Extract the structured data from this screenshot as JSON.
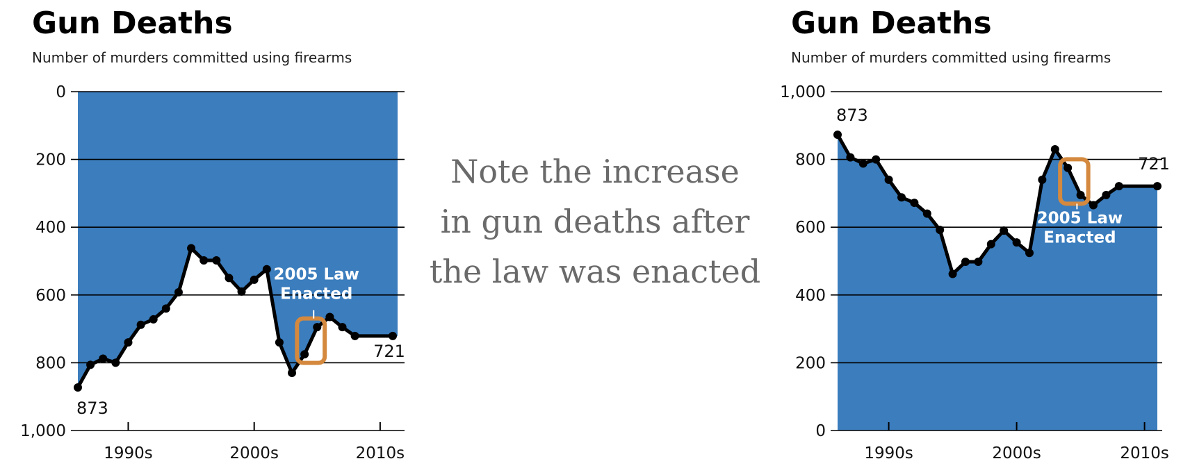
{
  "note": {
    "lines": [
      "Note the increase",
      "in gun deaths after",
      "the law was enacted"
    ]
  },
  "colors": {
    "area": "#3b7dbd",
    "line": "#000000",
    "highlight": "#d4893e",
    "annotation_text": "#ffffff"
  },
  "chart_data": [
    {
      "type": "area",
      "title": "Gun Deaths",
      "subtitle": "Number of murders committed using firearms",
      "y_inverted": true,
      "ylim": [
        0,
        1000
      ],
      "yticks": [
        0,
        200,
        400,
        600,
        800,
        1000
      ],
      "ytick_labels": [
        "0",
        "200",
        "400",
        "600",
        "800",
        "1,000"
      ],
      "xlim": [
        1986,
        2011
      ],
      "xticks": [
        1990,
        2000,
        2010
      ],
      "xtick_labels": [
        "1990s",
        "2000s",
        "2010s"
      ],
      "grid": true,
      "x": [
        1986,
        1987,
        1988,
        1989,
        1990,
        1991,
        1992,
        1993,
        1994,
        1995,
        1996,
        1997,
        1998,
        1999,
        2000,
        2001,
        2002,
        2003,
        2004,
        2005,
        2006,
        2007,
        2008,
        2009,
        2010,
        2011
      ],
      "values": [
        873,
        806,
        788,
        800,
        740,
        688,
        672,
        640,
        592,
        462,
        498,
        498,
        550,
        590,
        555,
        524,
        740,
        830,
        775,
        695,
        665,
        695,
        721,
        721,
        721,
        721
      ],
      "data_labels": [
        {
          "x": 1986,
          "value": 873,
          "text": "873"
        },
        {
          "x": 2011,
          "value": 721,
          "text": "721"
        }
      ],
      "annotation": {
        "text_lines": [
          "2005 Law",
          "Enacted"
        ]
      }
    },
    {
      "type": "area",
      "title": "Gun Deaths",
      "subtitle": "Number of murders committed using firearms",
      "y_inverted": false,
      "ylim": [
        0,
        1000
      ],
      "yticks": [
        0,
        200,
        400,
        600,
        800,
        1000
      ],
      "ytick_labels": [
        "0",
        "200",
        "400",
        "600",
        "800",
        "1,000"
      ],
      "xlim": [
        1986,
        2011
      ],
      "xticks": [
        1990,
        2000,
        2010
      ],
      "xtick_labels": [
        "1990s",
        "2000s",
        "2010s"
      ],
      "grid": true,
      "x": [
        1986,
        1987,
        1988,
        1989,
        1990,
        1991,
        1992,
        1993,
        1994,
        1995,
        1996,
        1997,
        1998,
        1999,
        2000,
        2001,
        2002,
        2003,
        2004,
        2005,
        2006,
        2007,
        2008,
        2009,
        2010,
        2011
      ],
      "values": [
        873,
        806,
        788,
        800,
        740,
        688,
        672,
        640,
        592,
        462,
        498,
        498,
        550,
        590,
        555,
        524,
        740,
        830,
        775,
        695,
        665,
        695,
        721,
        721,
        721,
        721
      ],
      "data_labels": [
        {
          "x": 1986,
          "value": 873,
          "text": "873"
        },
        {
          "x": 2011,
          "value": 721,
          "text": "721"
        }
      ],
      "annotation": {
        "text_lines": [
          "2005 Law",
          "Enacted"
        ]
      }
    }
  ]
}
